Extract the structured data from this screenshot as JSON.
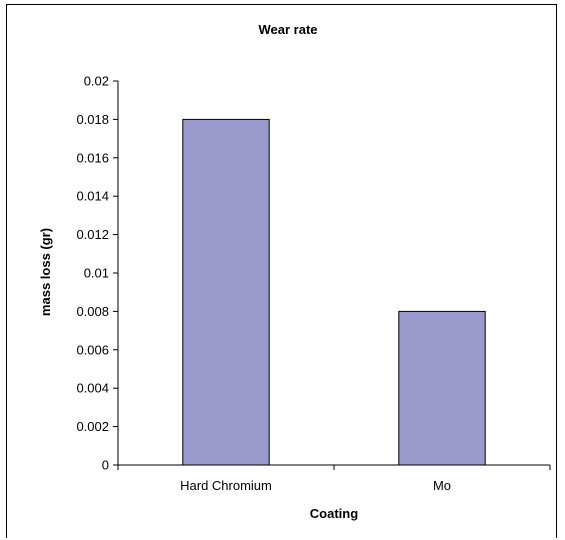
{
  "chart_data": {
    "type": "bar",
    "title": "Wear rate",
    "xlabel": "Coating",
    "ylabel": "mass loss (gr)",
    "categories": [
      "Hard Chromium",
      "Mo"
    ],
    "values": [
      0.018,
      0.008
    ],
    "ylim": [
      0,
      0.02
    ],
    "yticks": [
      "0",
      "0.002",
      "0.004",
      "0.006",
      "0.008",
      "0.01",
      "0.012",
      "0.014",
      "0.016",
      "0.018",
      "0.02"
    ],
    "grid": false,
    "legend": "none",
    "bar_color": "#9999cc",
    "bar_border_color": "#000000"
  }
}
